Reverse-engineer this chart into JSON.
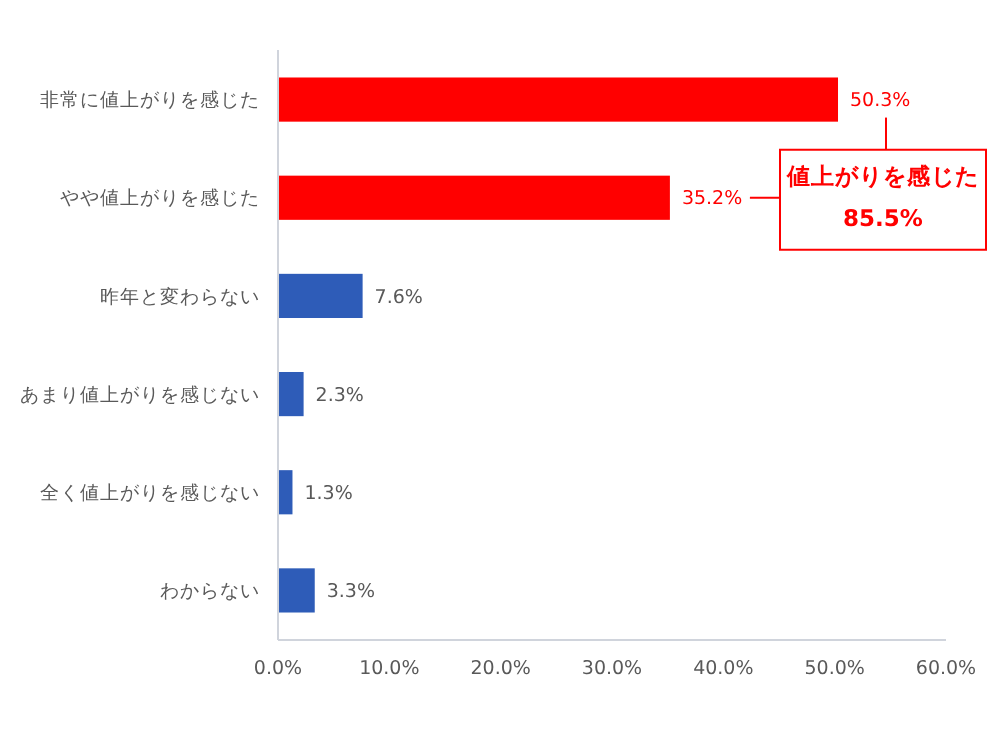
{
  "chart_data": {
    "type": "bar",
    "orientation": "horizontal",
    "categories": [
      "非常に値上がりを感じた",
      "やや値上がりを感じた",
      "昨年と変わらない",
      "あまり値上がりを感じない",
      "全く値上がりを感じない",
      "わからない"
    ],
    "values": [
      50.3,
      35.2,
      7.6,
      2.3,
      1.3,
      3.3
    ],
    "colors": [
      "#ff0000",
      "#ff0000",
      "#2e5cb8",
      "#2e5cb8",
      "#2e5cb8",
      "#2e5cb8"
    ],
    "value_labels": [
      "50.3%",
      "35.2%",
      "7.6%",
      "2.3%",
      "1.3%",
      "3.3%"
    ],
    "xlim": [
      0,
      60
    ],
    "xticks": [
      {
        "value": 0,
        "label": "0.0%"
      },
      {
        "value": 10,
        "label": "10.0%"
      },
      {
        "value": 20,
        "label": "20.0%"
      },
      {
        "value": 30,
        "label": "30.0%"
      },
      {
        "value": 40,
        "label": "40.0%"
      },
      {
        "value": 50,
        "label": "50.0%"
      },
      {
        "value": 60,
        "label": "60.0%"
      }
    ],
    "grid": false,
    "annotations": [
      "値上がりを感じた\n85.5%"
    ]
  }
}
